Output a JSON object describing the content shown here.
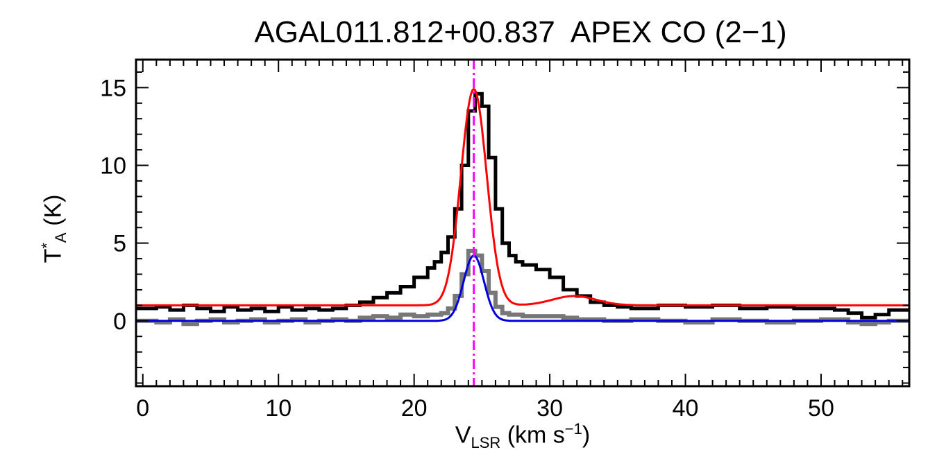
{
  "chart_data": {
    "type": "line",
    "title": "AGAL011.812+00.837  APEX CO (2−1)",
    "xlabel": {
      "main": "V",
      "sub": "LSR",
      "unit_open": " (km s",
      "sup": "−1",
      "unit_close": ")"
    },
    "ylabel": {
      "main": "T",
      "sup": "*",
      "sub": "A",
      "unit": " (K)"
    },
    "xlim": [
      -0.5,
      56.5
    ],
    "ylim": [
      -4.2,
      16.8
    ],
    "x_ticks": [
      0,
      10,
      20,
      30,
      40,
      50
    ],
    "x_tick_labels": [
      "0",
      "10",
      "20",
      "30",
      "40",
      "50"
    ],
    "y_ticks": [
      0,
      5,
      10,
      15
    ],
    "y_tick_labels": [
      "0",
      "5",
      "10",
      "15"
    ],
    "grid": false,
    "series": [
      {
        "kind": "observed-spectrum",
        "color": "#000000",
        "x": [
          -0.5,
          1,
          2,
          3,
          4,
          5,
          6,
          7,
          8,
          9,
          10,
          11,
          12,
          13,
          14,
          15,
          16,
          17,
          18,
          19,
          20,
          21,
          21.5,
          22,
          22.5,
          23,
          23.5,
          24,
          24.5,
          25,
          25.5,
          26,
          26.5,
          27,
          27.5,
          28,
          29,
          30,
          31,
          32,
          33,
          34,
          35,
          36,
          38,
          40,
          42,
          44,
          46,
          48,
          50,
          51,
          52,
          53,
          54,
          55,
          56.5
        ],
        "y": [
          0.8,
          0.9,
          0.7,
          1.0,
          0.8,
          0.6,
          0.9,
          0.7,
          0.8,
          0.6,
          0.9,
          0.7,
          0.8,
          0.7,
          0.8,
          1.0,
          1.2,
          1.5,
          1.8,
          2.2,
          2.8,
          3.4,
          3.8,
          4.4,
          5.4,
          7.2,
          10.0,
          13.5,
          14.6,
          13.8,
          10.5,
          7.2,
          5.0,
          4.2,
          3.8,
          3.6,
          3.3,
          2.8,
          2.0,
          1.6,
          1.2,
          1.0,
          0.9,
          0.8,
          1.0,
          0.9,
          1.0,
          0.8,
          0.9,
          0.8,
          0.8,
          0.7,
          0.5,
          0.2,
          0.4,
          0.7,
          0.8
        ]
      },
      {
        "kind": "observed-spectrum-2",
        "color": "#777777",
        "x": [
          -0.5,
          1,
          2,
          3,
          4,
          5,
          6,
          7,
          8,
          9,
          10,
          11,
          12,
          13,
          14,
          15,
          16,
          17,
          18,
          19,
          20,
          21,
          22,
          22.5,
          23,
          23.5,
          24,
          24.5,
          25,
          25.5,
          26,
          26.5,
          27,
          28,
          29,
          30,
          31,
          32,
          34,
          36,
          38,
          40,
          42,
          44,
          46,
          48,
          50,
          52,
          53,
          54,
          55,
          56.5
        ],
        "y": [
          0.0,
          -0.1,
          0.1,
          -0.2,
          0.0,
          0.1,
          -0.1,
          0.0,
          0.1,
          -0.1,
          0.0,
          0.1,
          -0.1,
          0.0,
          0.1,
          0.0,
          0.2,
          0.3,
          0.2,
          0.4,
          0.3,
          0.4,
          0.5,
          0.8,
          1.6,
          3.0,
          4.5,
          4.2,
          3.2,
          1.8,
          0.9,
          0.5,
          0.4,
          0.3,
          0.3,
          0.3,
          0.2,
          0.1,
          0.0,
          0.1,
          0.0,
          -0.1,
          0.1,
          0.0,
          -0.1,
          0.0,
          0.1,
          -0.1,
          -0.2,
          -0.1,
          0.0,
          0.1
        ]
      },
      {
        "kind": "gaussian-fit",
        "color": "#ff0000",
        "baseline": 1.0,
        "components": [
          {
            "amplitude": 13.9,
            "center": 24.4,
            "sigma": 0.95
          },
          {
            "amplitude": 0.6,
            "center": 31.8,
            "sigma": 1.6
          }
        ]
      },
      {
        "kind": "gaussian-fit",
        "color": "#0000dd",
        "baseline": 0.0,
        "components": [
          {
            "amplitude": 4.2,
            "center": 24.4,
            "sigma": 0.75
          }
        ]
      }
    ],
    "vlines": [
      {
        "x": 24.4,
        "style": "dash-dot",
        "color": "#ff00ff"
      }
    ]
  }
}
